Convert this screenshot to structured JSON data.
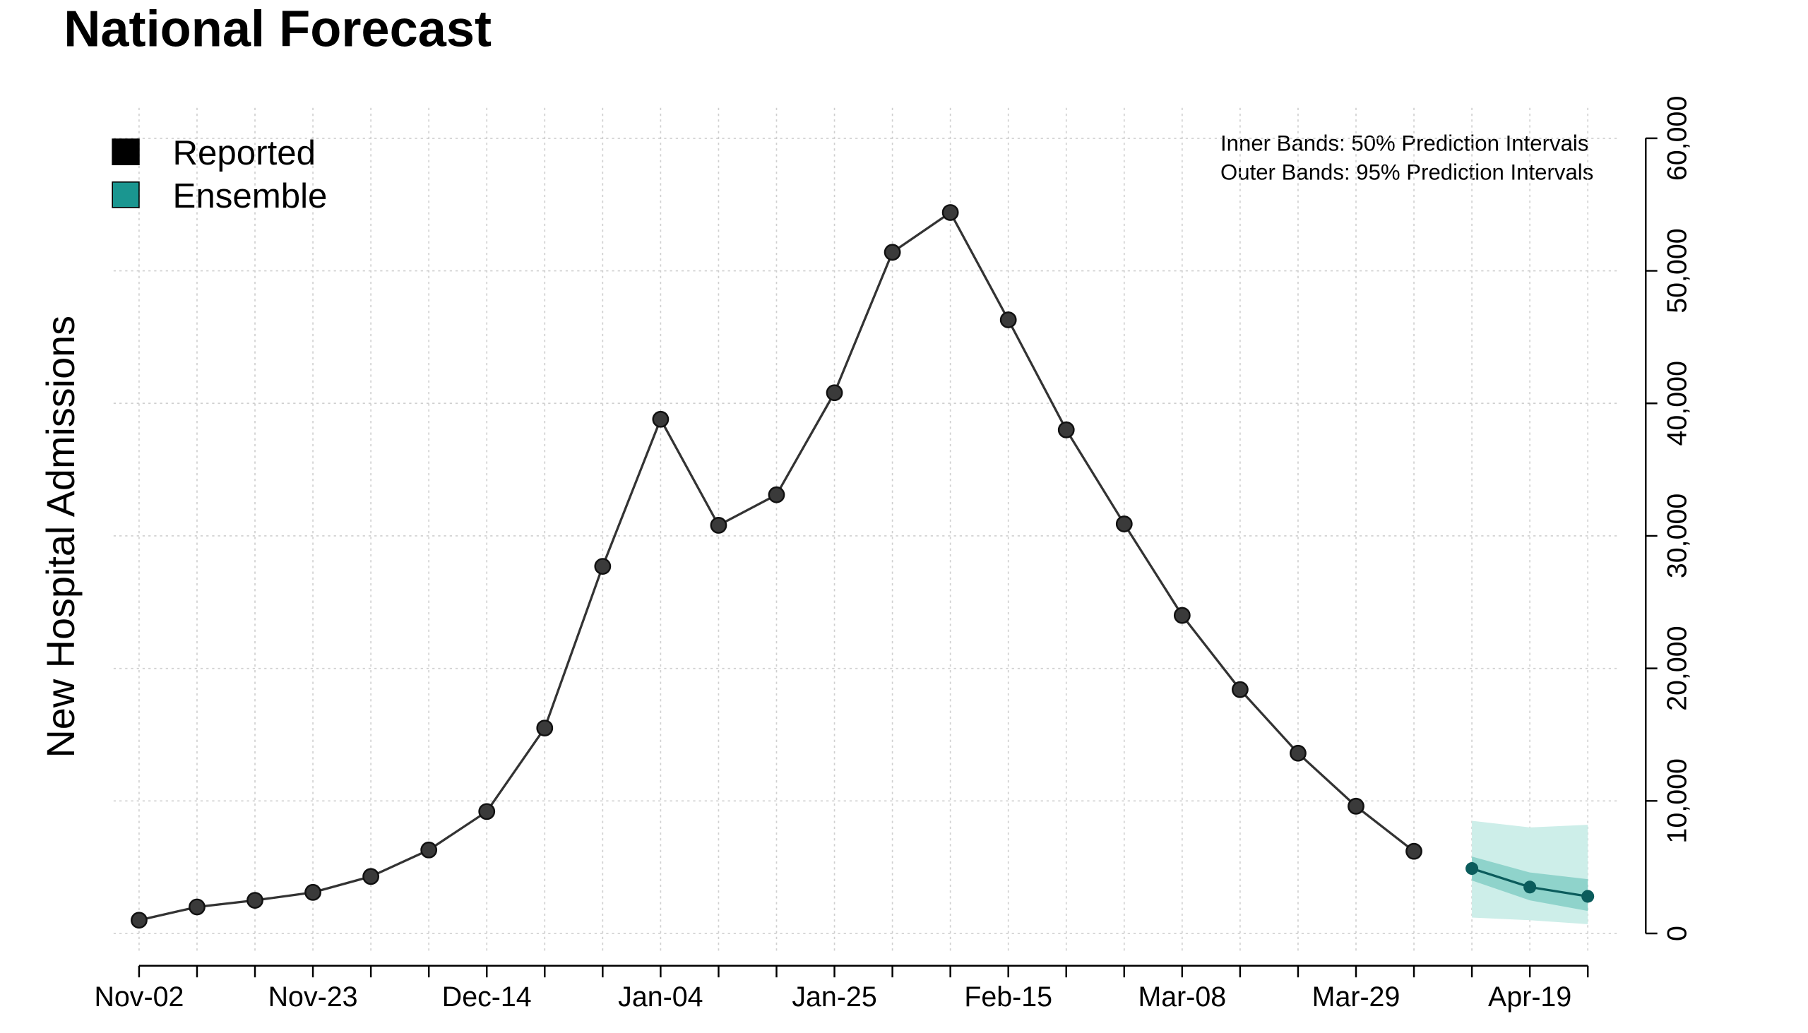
{
  "chart_data": {
    "type": "line",
    "title": "National Forecast",
    "y_label": "New Hospital Admissions",
    "annotations": [
      "Inner Bands: 50% Prediction Intervals",
      "Outer Bands: 95% Prediction Intervals"
    ],
    "categories": [
      "Nov-02",
      null,
      null,
      "Nov-23",
      null,
      null,
      "Dec-14",
      null,
      null,
      "Jan-04",
      null,
      null,
      "Jan-25",
      null,
      null,
      "Feb-15",
      null,
      null,
      "Mar-08",
      null,
      null,
      "Mar-29",
      null,
      null,
      "Apr-19",
      null
    ],
    "series": [
      {
        "name": "Reported",
        "color": "#000000",
        "line_color": "#333333",
        "values": [
          1000,
          2000,
          2500,
          3100,
          4300,
          6300,
          9200,
          15500,
          27700,
          38800,
          30800,
          33100,
          40800,
          51400,
          54400,
          46300,
          38000,
          30900,
          24000,
          18400,
          13600,
          9600,
          6200,
          null,
          null,
          null
        ]
      },
      {
        "name": "Ensemble",
        "color": "#1a9690",
        "line_color": "#0b5c5c",
        "values": [
          null,
          null,
          null,
          null,
          null,
          null,
          null,
          null,
          null,
          null,
          null,
          null,
          null,
          null,
          null,
          null,
          null,
          null,
          null,
          null,
          null,
          null,
          null,
          4900,
          3500,
          2800
        ],
        "lower_95": [
          null,
          null,
          null,
          null,
          null,
          null,
          null,
          null,
          null,
          null,
          null,
          null,
          null,
          null,
          null,
          null,
          null,
          null,
          null,
          null,
          null,
          null,
          null,
          1200,
          1000,
          700
        ],
        "upper_95": [
          null,
          null,
          null,
          null,
          null,
          null,
          null,
          null,
          null,
          null,
          null,
          null,
          null,
          null,
          null,
          null,
          null,
          null,
          null,
          null,
          null,
          null,
          null,
          8500,
          8000,
          8200
        ],
        "lower_50": [
          null,
          null,
          null,
          null,
          null,
          null,
          null,
          null,
          null,
          null,
          null,
          null,
          null,
          null,
          null,
          null,
          null,
          null,
          null,
          null,
          null,
          null,
          null,
          4000,
          2500,
          1700
        ],
        "upper_50": [
          null,
          null,
          null,
          null,
          null,
          null,
          null,
          null,
          null,
          null,
          null,
          null,
          null,
          null,
          null,
          null,
          null,
          null,
          null,
          null,
          null,
          null,
          null,
          5800,
          4600,
          4100
        ],
        "band_95_color": "#cdeee9",
        "band_50_color": "#8fd3cb"
      }
    ],
    "ylim": [
      -1300,
      62300
    ],
    "yticks": [
      0,
      {
        "value": 10000,
        "label": "10,000"
      },
      {
        "value": 20000,
        "label": "20,000"
      },
      {
        "value": 30000,
        "label": "30,000"
      },
      {
        "value": 40000,
        "label": "40,000"
      },
      {
        "value": 50000,
        "label": "50,000"
      },
      {
        "value": 60000,
        "label": "60,000"
      }
    ],
    "grid": true,
    "y_axis_side": "right",
    "legend": "top-left"
  }
}
